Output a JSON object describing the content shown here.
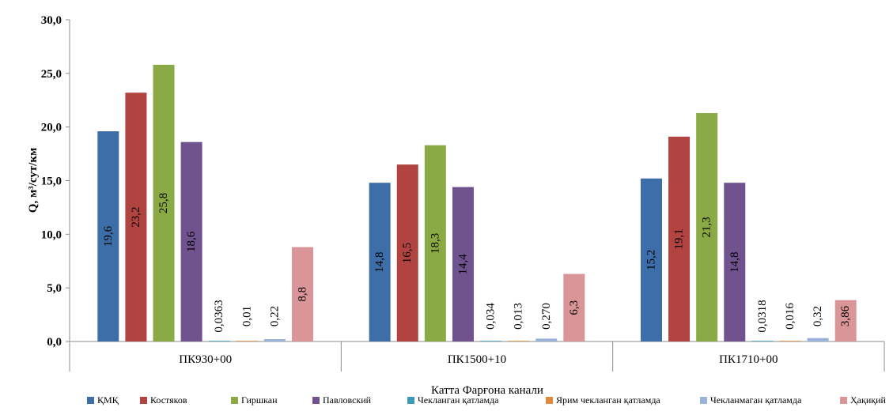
{
  "chart_data": {
    "type": "bar",
    "title": "",
    "ylabel": "Q, м³/сут/км",
    "xlabel": "Катта Фарғона канали",
    "ylim": [
      0,
      30
    ],
    "y_ticks": [
      "0,0",
      "5,0",
      "10,0",
      "15,0",
      "20,0",
      "25,0",
      "30,0"
    ],
    "y_tick_values": [
      0,
      5,
      10,
      15,
      20,
      25,
      30
    ],
    "categories": [
      "ПК930+00",
      "ПК1500+10",
      "ПК1710+00"
    ],
    "grid": false,
    "legend_position": "bottom",
    "series": [
      {
        "name": "ҚМҚ",
        "color": "#3e6ea8",
        "values": [
          19.6,
          14.8,
          15.2
        ],
        "labels": [
          "19,6",
          "14,8",
          "15,2"
        ]
      },
      {
        "name": "Костяков",
        "color": "#b14340",
        "values": [
          23.2,
          16.5,
          19.1
        ],
        "labels": [
          "23,2",
          "16,5",
          "19,1"
        ]
      },
      {
        "name": "Гиршкан",
        "color": "#8aaa45",
        "values": [
          25.8,
          18.3,
          21.3
        ],
        "labels": [
          "25,8",
          "18,3",
          "21,3"
        ]
      },
      {
        "name": "Павловский",
        "color": "#70528f",
        "values": [
          18.6,
          14.4,
          14.8
        ],
        "labels": [
          "18,6",
          "14,4",
          "14,8"
        ]
      },
      {
        "name": "Чекланган қатламда",
        "color": "#3c9bb8",
        "values": [
          0.0363,
          0.034,
          0.0318
        ],
        "labels": [
          "0,0363",
          "0,034",
          "0,0318"
        ]
      },
      {
        "name": "Ярим чекланган қатламда",
        "color": "#e08a3c",
        "values": [
          0.01,
          0.013,
          0.016
        ],
        "labels": [
          "0,01",
          "0,013",
          "0,016"
        ]
      },
      {
        "name": "Чекланмаган қатламда",
        "color": "#9ab3d9",
        "values": [
          0.22,
          0.27,
          0.32
        ],
        "labels": [
          "0,22",
          "0,270",
          "0,32"
        ]
      },
      {
        "name": "Ҳақиқий",
        "color": "#d99597",
        "values": [
          8.8,
          6.3,
          3.86
        ],
        "labels": [
          "8,8",
          "6,3",
          "3,86"
        ]
      }
    ]
  }
}
